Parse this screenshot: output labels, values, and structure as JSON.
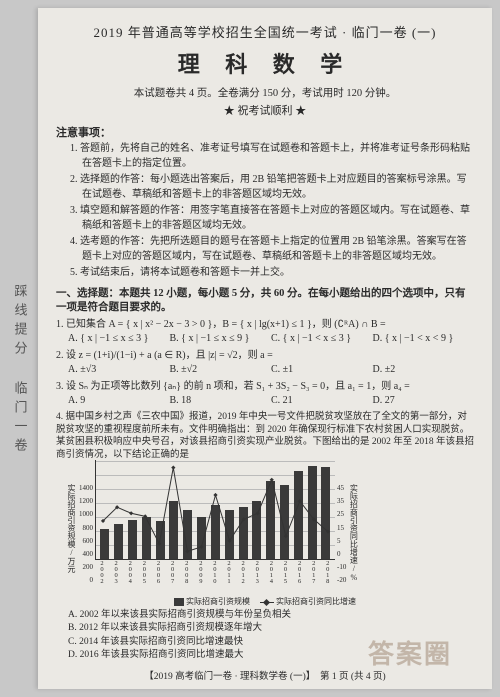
{
  "side_vertical": "踩线提分 临门一卷",
  "header": "2019 年普通高等学校招生全国统一考试 · 临门一卷 (一)",
  "title": "理 科 数 学",
  "subline": "本试题卷共 4 页。全卷满分 150 分，考试用时 120 分钟。",
  "stars": "★ 祝考试顺利 ★",
  "notice_head": "注意事项：",
  "notices": [
    "1. 答题前，先将自己的姓名、准考证号填写在试题卷和答题卡上，并将准考证号条形码粘贴在答题卡上的指定位置。",
    "2. 选择题的作答：每小题选出答案后，用 2B 铅笔把答题卡上对应题目的答案标号涂黑。写在试题卷、草稿纸和答题卡上的非答题区域均无效。",
    "3. 填空题和解答题的作答：用签字笔直接答在答题卡上对应的答题区域内。写在试题卷、草稿纸和答题卡上的非答题区域均无效。",
    "4. 选考题的作答：先把所选题目的题号在答题卡上指定的位置用 2B 铅笔涂黑。答案写在答题卡上对应的答题区域内，写在试题卷、草稿纸和答题卡上的非答题区域均无效。",
    "5. 考试结束后，请将本试题卷和答题卡一并上交。"
  ],
  "part1_head": "一、选择题：本题共 12 小题，每小题 5 分，共 60 分。在每小题给出的四个选项中，只有一项是符合题目要求的。",
  "q1": {
    "stem": "1. 已知集合 A = { x | x² − 2x − 3 > 0 }，B = { x | lg(x+1) ≤ 1 }，则 (∁ᴿA) ∩ B =",
    "opts": [
      "A. { x | −1 ≤ x ≤ 3 }",
      "B. { x | −1 ≤ x ≤ 9 }",
      "C. { x | −1 < x ≤ 3 }",
      "D. { x | −1 < x < 9 }"
    ]
  },
  "q2": {
    "stem": "2. 设 z = (1+i)/(1−i) + a (a ∈ R)，且 |z| = √2，则 a =",
    "opts": [
      "A. ±√3",
      "B. ±√2",
      "C. ±1",
      "D. ±2"
    ]
  },
  "q3": {
    "stem": "3. 设 Sₙ 为正项等比数列 {aₙ} 的前 n 项和，若 S₁ + 3S₂ − S₃ = 0，且 a₁ = 1，则 a₄ =",
    "opts": [
      "A. 9",
      "B. 18",
      "C. 21",
      "D. 27"
    ]
  },
  "q4": {
    "stem": "4. 据中国乡村之声《三农中国》报道，2019 年中央一号文件把脱贫攻坚放在了全文的第一部分，对脱贫攻坚的重视程度前所未有。文件明确指出：到 2020 年确保现行标准下农村贫困人口实现脱贫。某贫困县积极响应中央号召，对该县招商引资实现产业脱贫。下图给出的是 2002 年至 2018 年该县招商引资情况，以下结论正确的是",
    "optsA": "A. 2002 年以来该县实际招商引资规模与年份呈负相关",
    "optsB": "B. 2012 年以来该县实际招商引资规模逐年增大",
    "optsC": "C. 2014 年该县实际招商引资同比增速最快",
    "optsD": "D. 2016 年该县实际招商引资同比增速最大"
  },
  "chart": {
    "type": "bar+line",
    "years": [
      "2002",
      "2003",
      "2004",
      "2005",
      "2006",
      "2007",
      "2008",
      "2009",
      "2010",
      "2011",
      "2012",
      "2013",
      "2014",
      "2015",
      "2016",
      "2017",
      "2018"
    ],
    "bar_values": [
      420,
      500,
      560,
      600,
      540,
      820,
      700,
      600,
      760,
      700,
      740,
      820,
      1100,
      1050,
      1250,
      1320,
      1300
    ],
    "line_values": [
      5,
      14,
      10,
      8,
      -10,
      40,
      -15,
      -12,
      22,
      -8,
      6,
      10,
      32,
      -5,
      18,
      6,
      -2
    ],
    "y_left_max": 1400,
    "y_left_step": 200,
    "y_right_max": 45,
    "y_right_min": -20,
    "y_right_step": 5,
    "y_left_ticks": [
      "1400",
      "1200",
      "1000",
      "800",
      "600",
      "400",
      "200",
      "0"
    ],
    "y_right_ticks": [
      "45",
      "40",
      "35",
      "30",
      "25",
      "20",
      "15",
      "10",
      "5",
      "0",
      "-5",
      "-10",
      "-15",
      "-20"
    ],
    "y_left_label": "实际招商引资规模/万元",
    "y_right_label": "实际招商引资同比增速/%",
    "bar_color": "#3a3a3a",
    "line_color": "#333333",
    "grid_color": "#bbbbbb",
    "legend_bar": "实际招商引资规模",
    "legend_line": "实际招商引资同比增速"
  },
  "footer": "【2019 高考临门一卷 · 理科数学卷 (一)】　第 1 页 (共 4 页)",
  "watermark": "答案圈"
}
